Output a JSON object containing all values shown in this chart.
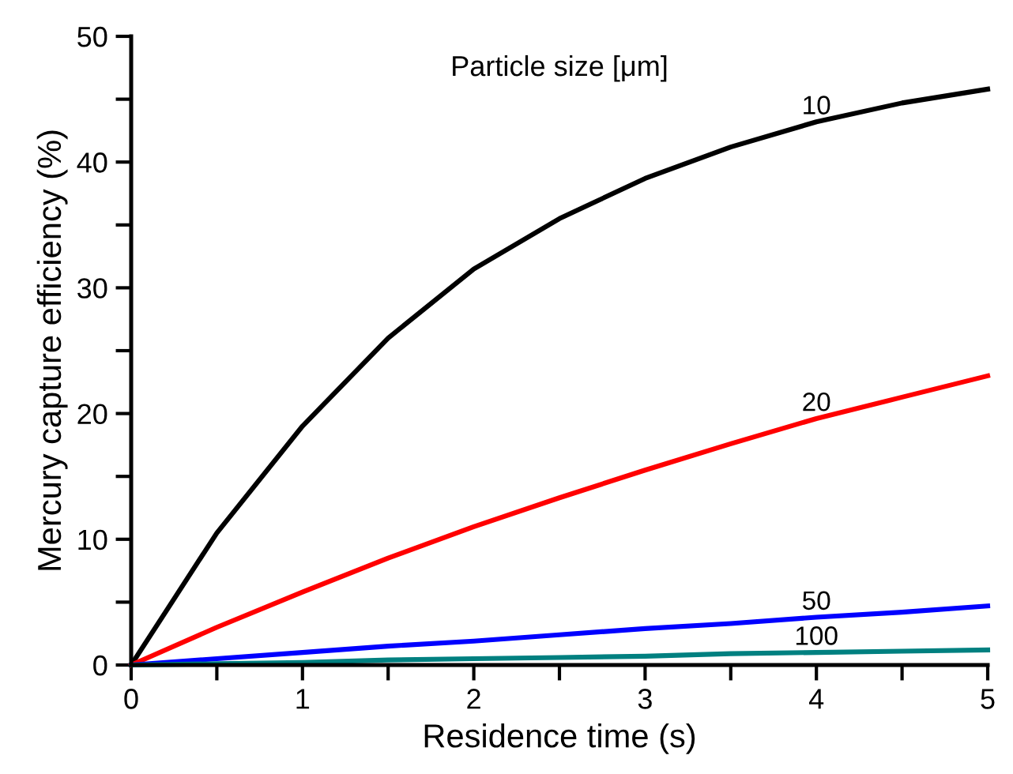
{
  "chart_data": {
    "type": "line",
    "legend_title": "Particle size [μm]",
    "xlabel": "Residence time (s)",
    "ylabel": "Mercury capture efficiency (%)",
    "x": [
      0,
      0.5,
      1,
      1.5,
      2,
      2.5,
      3,
      3.5,
      4,
      4.5,
      5
    ],
    "series": [
      {
        "name": "10",
        "color": "#000000",
        "values": [
          0,
          10.5,
          19,
          26,
          31.5,
          35.5,
          38.7,
          41.2,
          43.2,
          44.7,
          45.8
        ]
      },
      {
        "name": "20",
        "color": "#ff0000",
        "values": [
          0,
          3,
          5.8,
          8.5,
          11,
          13.3,
          15.5,
          17.6,
          19.6,
          21.3,
          23
        ]
      },
      {
        "name": "50",
        "color": "#0000ff",
        "values": [
          0,
          0.5,
          1.0,
          1.5,
          1.9,
          2.4,
          2.9,
          3.3,
          3.8,
          4.2,
          4.7
        ]
      },
      {
        "name": "100",
        "color": "#008080",
        "values": [
          0,
          0.1,
          0.2,
          0.4,
          0.5,
          0.6,
          0.7,
          0.9,
          1.0,
          1.1,
          1.2
        ]
      }
    ],
    "xlim": [
      0,
      5
    ],
    "ylim": [
      0,
      50
    ],
    "xticks": [
      0,
      {
        "value": 0.5,
        "label": null
      },
      1,
      {
        "value": 1.5,
        "label": null
      },
      2,
      {
        "value": 2.5,
        "label": null
      },
      3,
      {
        "value": 3.5,
        "label": null
      },
      4,
      {
        "value": 4.5,
        "label": null
      },
      5
    ],
    "yticks": [
      0,
      {
        "value": 5,
        "label": null
      },
      10,
      {
        "value": 15,
        "label": null
      },
      20,
      {
        "value": 25,
        "label": null
      },
      30,
      {
        "value": 35,
        "label": null
      },
      40,
      {
        "value": 45,
        "label": null
      },
      50
    ],
    "grid": false,
    "legend": false,
    "marker": "none",
    "line_style": "solid"
  }
}
